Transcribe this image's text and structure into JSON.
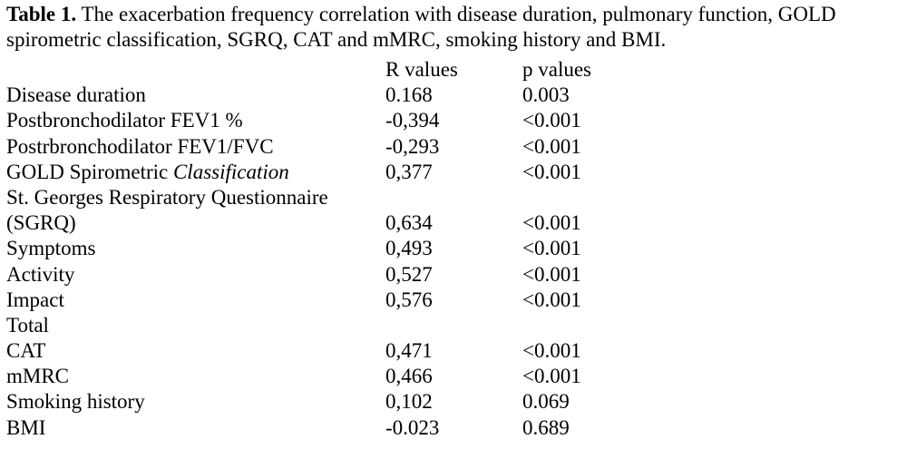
{
  "caption": {
    "label": "Table 1.",
    "line1": " The exacerbation frequency correlation with disease duration, pulmonary function, GOLD",
    "line2": "spirometric classification, SGRQ, CAT and mMRC, smoking history and BMI."
  },
  "headers": {
    "r": "R values",
    "p": "p values"
  },
  "rows": [
    {
      "label": "Disease duration",
      "r": "0.168",
      "p": "0.003"
    },
    {
      "label": "Postbronchodilator FEV1 %",
      "r": "-0,394",
      "p": "<0.001"
    },
    {
      "label": "Postrbronchodilator FEV1/FVC",
      "r": "-0,293",
      "p": "<0.001"
    },
    {
      "label": "GOLD Spirometric ",
      "label_italic": "Classification",
      "r": "0,377",
      "p": "<0.001"
    },
    {
      "label": "St. Georges Respiratory Questionnaire",
      "r": "",
      "p": ""
    },
    {
      "label": "(SGRQ)",
      "r": "0,634",
      "p": "<0.001"
    },
    {
      "label": "Symptoms",
      "r": "0,493",
      "p": "<0.001"
    },
    {
      "label": "Activity",
      "r": "0,527",
      "p": "<0.001"
    },
    {
      "label": "Impact",
      "r": "0,576",
      "p": "<0.001"
    },
    {
      "label": "Total",
      "r": "",
      "p": ""
    },
    {
      "label": "CAT",
      "r": "0,471",
      "p": "<0.001"
    },
    {
      "label": "mMRC",
      "r": "0,466",
      "p": "<0.001"
    },
    {
      "label": "Smoking history",
      "r": "0,102",
      "p": "0.069"
    },
    {
      "label": "BMI",
      "r": "-0.023",
      "p": "0.689"
    }
  ]
}
